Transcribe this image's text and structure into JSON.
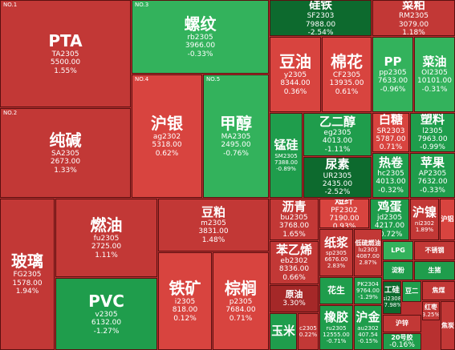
{
  "tiles": [
    {
      "rank": "NO.1",
      "name": "PTA",
      "code": "TA2305",
      "price": "5500.00",
      "change": "1.55%"
    },
    {
      "rank": "NO.2",
      "name": "纯碱",
      "code": "SA2305",
      "price": "2673.00",
      "change": "1.33%"
    },
    {
      "rank": "NO.3",
      "name": "螺纹",
      "code": "rb2305",
      "price": "3966.00",
      "change": "-0.33%"
    },
    {
      "rank": "NO.4",
      "name": "沪银",
      "code": "ag2302",
      "price": "5318.00",
      "change": "0.62%"
    },
    {
      "rank": "NO.5",
      "name": "甲醇",
      "code": "MA2305",
      "price": "2495.00",
      "change": "-0.76%"
    },
    {
      "name": "玻璃",
      "code": "FG2305",
      "price": "1578.00",
      "change": "1.94%"
    },
    {
      "name": "燃油",
      "code": "fu2305",
      "price": "2725.00",
      "change": "1.11%"
    },
    {
      "name": "PVC",
      "code": "v2305",
      "price": "6132.00",
      "change": "-1.27%"
    },
    {
      "name": "豆粕",
      "code": "m2305",
      "price": "3831.00",
      "change": "1.48%"
    },
    {
      "name": "铁矿",
      "code": "i2305",
      "price": "818.00",
      "change": "0.12%"
    },
    {
      "name": "棕榈",
      "code": "p2305",
      "price": "7684.00",
      "change": "0.71%"
    },
    {
      "name": "硅铁",
      "code": "SF2303",
      "price": "7988.00",
      "change": "-2.54%"
    },
    {
      "name": "菜粕",
      "code": "RM2305",
      "price": "3079.00",
      "change": "1.18%"
    },
    {
      "name": "豆油",
      "code": "y2305",
      "price": "8344.00",
      "change": "0.36%"
    },
    {
      "name": "棉花",
      "code": "CF2305",
      "price": "13935.00",
      "change": "0.61%"
    },
    {
      "name": "PP",
      "code": "pp2305",
      "price": "7633.00",
      "change": "-0.96%"
    },
    {
      "name": "菜油",
      "code": "OI2305",
      "price": "10101.00",
      "change": "-0.31%"
    },
    {
      "name": "锰硅",
      "code": "SM2305",
      "price": "7388.00",
      "change": "-0.89%"
    },
    {
      "name": "乙二醇",
      "code": "eg2305",
      "price": "4013.00",
      "change": "-1.11%"
    },
    {
      "name": "白糖",
      "code": "SR2303",
      "price": "5787.00",
      "change": "0.71%"
    },
    {
      "name": "塑料",
      "code": "l2305",
      "price": "7963.00",
      "change": "-0.99%"
    },
    {
      "name": "尿素",
      "code": "UR2305",
      "price": "2435.00",
      "change": "-2.52%"
    },
    {
      "name": "热卷",
      "code": "hc2305",
      "price": "4013.00",
      "change": "-0.32%"
    },
    {
      "name": "苹果",
      "code": "AP2305",
      "price": "7632.00",
      "change": "-0.33%"
    },
    {
      "name": "沥青",
      "code": "bu2305",
      "price": "3768.00",
      "change": "1.65%"
    },
    {
      "name": "短纤",
      "code": "PF2302",
      "price": "7190.00",
      "change": "0.93%"
    },
    {
      "name": "鸡蛋",
      "code": "jd2305",
      "price": "4217.00",
      "change": "-0.72%"
    },
    {
      "name": "沪镍",
      "code": "ni2302",
      "change": "1.89%"
    },
    {
      "name": "沪铝"
    },
    {
      "name": "苯乙烯",
      "code": "eb2302",
      "price": "8336.00",
      "change": "0.66%"
    },
    {
      "name": "纸浆",
      "code": "sp2305",
      "price": "6676.00",
      "change": "2.83%"
    },
    {
      "name": "低硫燃油",
      "code": "lu2303",
      "price": "4087.00",
      "change": "2.87%"
    },
    {
      "name": "LPG"
    },
    {
      "name": "不锈钢"
    },
    {
      "name": "淀粉"
    },
    {
      "name": "生猪"
    },
    {
      "name": "原油",
      "change": "3.30%"
    },
    {
      "name": "花生"
    },
    {
      "code": "PK2304",
      "price": "9764.00",
      "change": "-1.29%"
    },
    {
      "name": "玉米"
    },
    {
      "code": "c2305",
      "change": "0.22%"
    },
    {
      "name": "橡胶",
      "code": "ru2305",
      "price": "12555.00",
      "change": "-0.71%"
    },
    {
      "name": "沪金",
      "code": "au2302",
      "price": "407.54",
      "change": "-0.15%"
    },
    {
      "name": "工硅",
      "code": "si2308",
      "change": "-7.98%"
    },
    {
      "name": "豆二",
      "code": "a2305"
    },
    {
      "name": "焦煤"
    },
    {
      "name": "红枣",
      "change": "3.25%"
    },
    {
      "name": "沪锌"
    },
    {
      "name": "20号胶",
      "change": "-0.16%"
    },
    {
      "name": "焦炭"
    }
  ]
}
